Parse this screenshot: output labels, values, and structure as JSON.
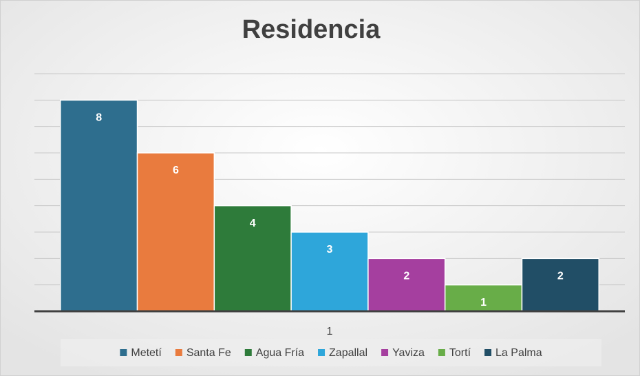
{
  "chart_data": {
    "type": "bar",
    "title": "Residencia",
    "categories": [
      "1"
    ],
    "series": [
      {
        "name": "Metetí",
        "color": "#2e6e8e",
        "values": [
          8
        ]
      },
      {
        "name": "Santa Fe",
        "color": "#e97b3e",
        "values": [
          6
        ]
      },
      {
        "name": "Agua Fría",
        "color": "#2e7b3a",
        "values": [
          4
        ]
      },
      {
        "name": "Zapallal",
        "color": "#2ea6da",
        "values": [
          3
        ]
      },
      {
        "name": "Yaviza",
        "color": "#a53f9f",
        "values": [
          2
        ]
      },
      {
        "name": "Tortí",
        "color": "#68ad48",
        "values": [
          1
        ]
      },
      {
        "name": "La Palma",
        "color": "#214e66",
        "values": [
          2
        ]
      }
    ],
    "ylim": [
      0,
      9
    ],
    "yticks": [
      0,
      1,
      2,
      3,
      4,
      5,
      6,
      7,
      8,
      9
    ],
    "grid": true,
    "legend": "bottom"
  }
}
